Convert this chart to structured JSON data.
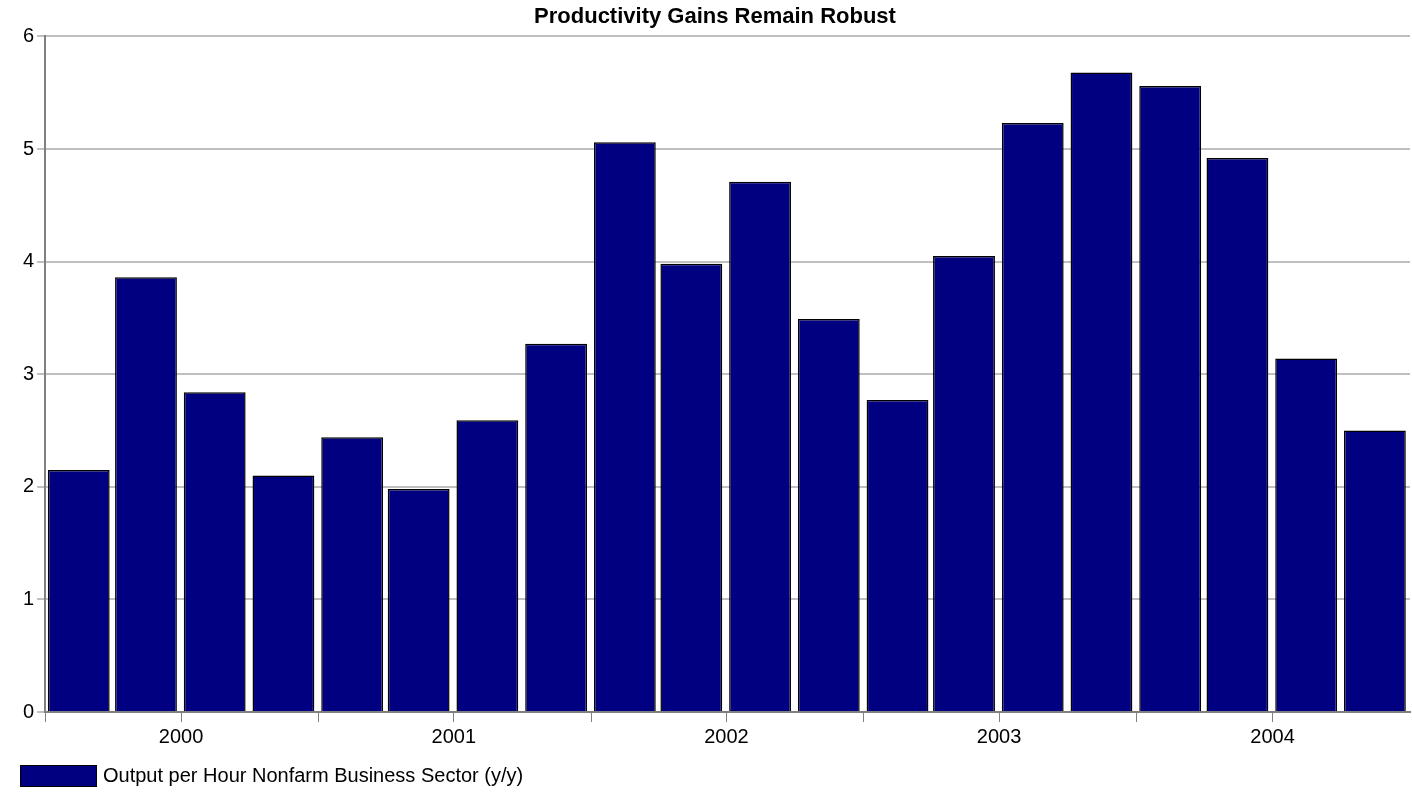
{
  "chart_data": {
    "type": "bar",
    "title": "Productivity Gains Remain Robust",
    "x": [
      "2000-02-15",
      "2000-05-15",
      "2000-08-15",
      "2000-11-15",
      "2001-02-15",
      "2001-05-15",
      "2001-08-15",
      "2001-11-15",
      "2002-02-15",
      "2002-05-15",
      "2002-08-15",
      "2002-11-15",
      "2003-02-15",
      "2003-05-15",
      "2003-08-15",
      "2003-11-15",
      "2004-02-15",
      "2004-05-15",
      "2004-08-15",
      "2004-11-15"
    ],
    "series": [
      {
        "name": "Output per Hour Nonfarm Business Sector (y/y)",
        "color": "#000080",
        "values": [
          2.15,
          3.86,
          2.84,
          2.1,
          2.44,
          1.98,
          2.59,
          3.27,
          5.06,
          3.98,
          4.71,
          3.49,
          2.77,
          4.05,
          5.23,
          5.68,
          5.56,
          4.92,
          3.14,
          2.5
        ]
      }
    ],
    "xlim": [
      "2000-01-01",
      "2005-01-01"
    ],
    "xticks": [
      {
        "value": "2000-01-01",
        "label": null
      },
      {
        "value": "2000-07-01",
        "label": "2000"
      },
      {
        "value": "2001-01-01",
        "label": null
      },
      {
        "value": "2001-07-01",
        "label": "2001"
      },
      {
        "value": "2002-01-01",
        "label": null
      },
      {
        "value": "2002-07-01",
        "label": "2002"
      },
      {
        "value": "2003-01-01",
        "label": null
      },
      {
        "value": "2003-07-01",
        "label": "2003"
      },
      {
        "value": "2004-01-01",
        "label": null
      },
      {
        "value": "2004-07-01",
        "label": "2004"
      }
    ],
    "ylim": [
      0,
      6
    ],
    "yticks": [
      0,
      1,
      2,
      3,
      4,
      5,
      6
    ],
    "grid": "y",
    "legend": "bottom left"
  }
}
